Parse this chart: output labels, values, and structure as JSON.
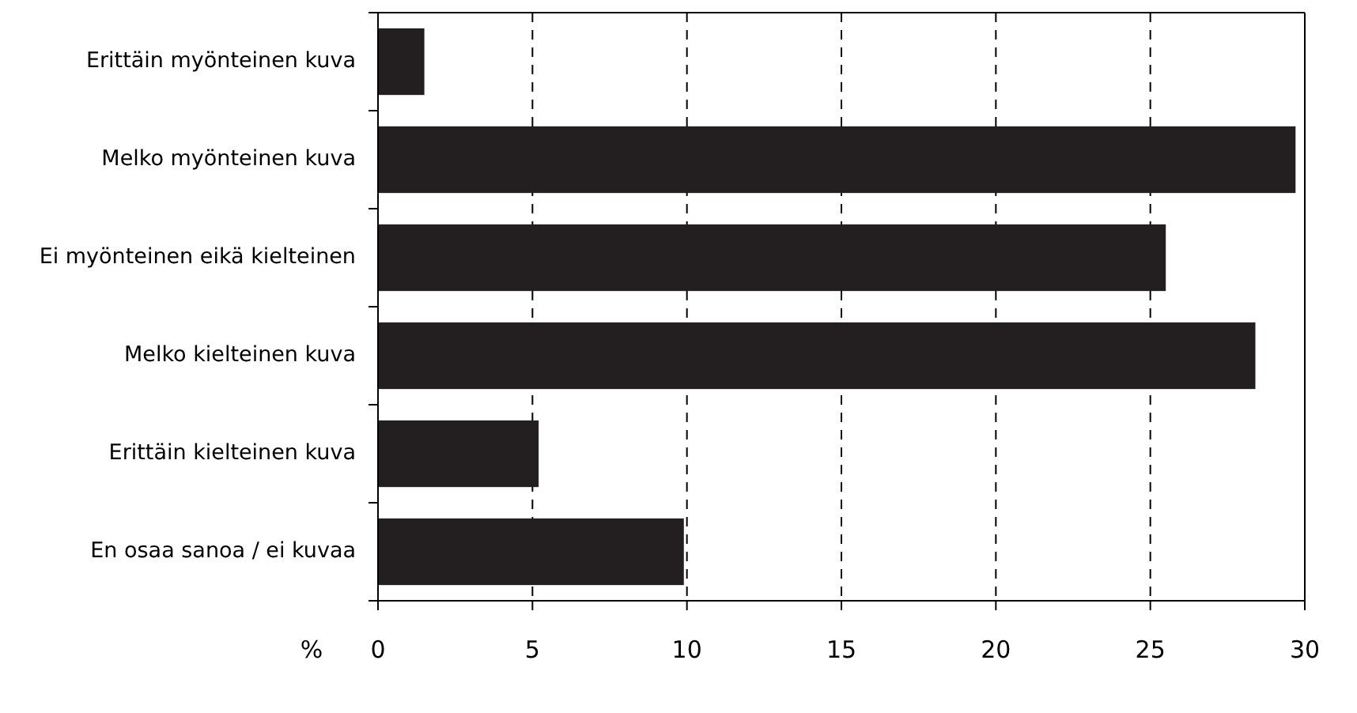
{
  "chart_data": {
    "type": "bar",
    "orientation": "horizontal",
    "categories": [
      "Erittäin myönteinen kuva",
      "Melko myönteinen kuva",
      "Ei myönteinen eikä kielteinen",
      "Melko kielteinen kuva",
      "Erittäin kielteinen kuva",
      "En osaa sanoa / ei kuvaa"
    ],
    "values": [
      1.5,
      29.7,
      25.5,
      28.4,
      5.2,
      9.9
    ],
    "color": "#231f20",
    "xlim": [
      0,
      30
    ],
    "xticks": [
      0,
      5,
      10,
      15,
      20,
      25,
      30
    ],
    "xlabel": "%",
    "grid": "x"
  }
}
